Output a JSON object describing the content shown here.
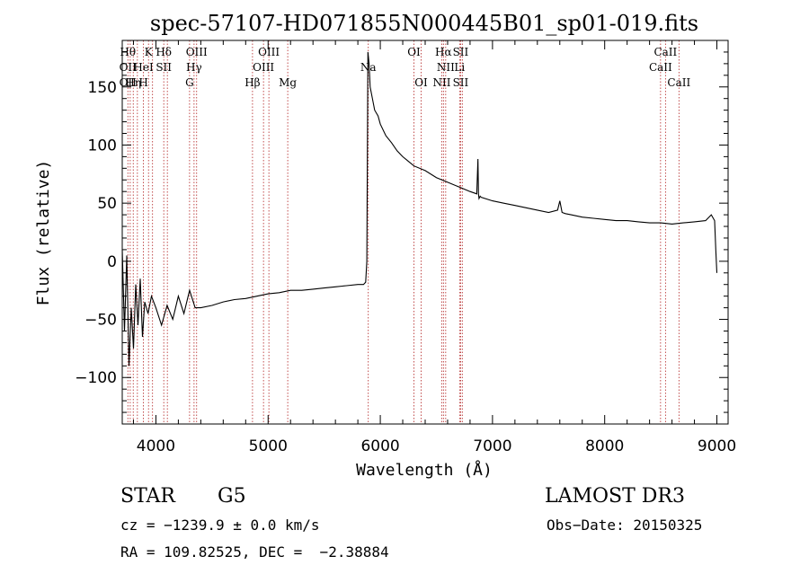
{
  "chart_data": {
    "type": "line",
    "title": "spec-57107-HD071855N000445B01_sp01-019.fits",
    "xlabel": "Wavelength (Å)",
    "ylabel": "Flux (relative)",
    "xlim": [
      3700,
      9100
    ],
    "ylim": [
      -140,
      190
    ],
    "xticks": [
      4000,
      5000,
      6000,
      7000,
      8000,
      9000
    ],
    "yticks": [
      -100,
      -50,
      0,
      50,
      100,
      150
    ],
    "series": [
      {
        "name": "flux",
        "x": [
          3700,
          3720,
          3740,
          3760,
          3780,
          3800,
          3820,
          3840,
          3860,
          3880,
          3900,
          3930,
          3960,
          4000,
          4050,
          4100,
          4150,
          4200,
          4250,
          4300,
          4350,
          4400,
          4500,
          4600,
          4700,
          4800,
          4900,
          5000,
          5100,
          5200,
          5300,
          5400,
          5500,
          5600,
          5700,
          5800,
          5850,
          5870,
          5880,
          5890,
          5900,
          5910,
          5930,
          5950,
          5980,
          6000,
          6050,
          6100,
          6150,
          6200,
          6250,
          6300,
          6400,
          6500,
          6600,
          6700,
          6800,
          6860,
          6870,
          6875,
          6880,
          6890,
          6900,
          7000,
          7100,
          7200,
          7300,
          7400,
          7500,
          7580,
          7600,
          7620,
          7650,
          7700,
          7800,
          7900,
          8000,
          8100,
          8200,
          8300,
          8400,
          8500,
          8600,
          8700,
          8800,
          8900,
          8950,
          8980,
          8990,
          9000
        ],
        "y": [
          10,
          -60,
          5,
          -90,
          -40,
          -75,
          -20,
          -55,
          -15,
          -65,
          -35,
          -45,
          -30,
          -40,
          -55,
          -38,
          -50,
          -30,
          -45,
          -25,
          -40,
          -40,
          -38,
          -35,
          -33,
          -32,
          -30,
          -28,
          -27,
          -25,
          -25,
          -24,
          -23,
          -22,
          -21,
          -20,
          -20,
          -18,
          0,
          180,
          170,
          150,
          140,
          130,
          125,
          118,
          108,
          102,
          95,
          90,
          86,
          82,
          78,
          72,
          68,
          64,
          60,
          58,
          88,
          58,
          54,
          56,
          55,
          52,
          50,
          48,
          46,
          44,
          42,
          44,
          52,
          42,
          41,
          40,
          38,
          37,
          36,
          35,
          35,
          34,
          33,
          33,
          32,
          33,
          34,
          35,
          40,
          35,
          10,
          -10
        ]
      }
    ],
    "lines": [
      {
        "wave": 3750,
        "labels": [
          "Hθ",
          "OII",
          "OII"
        ]
      },
      {
        "wave": 3771,
        "labels": []
      },
      {
        "wave": 3798,
        "labels": [
          "",
          "",
          "Hη"
        ]
      },
      {
        "wave": 3835,
        "labels": [
          "",
          "",
          ""
        ]
      },
      {
        "wave": 3889,
        "labels": [
          "",
          "HeI",
          "H"
        ]
      },
      {
        "wave": 3934,
        "labels": [
          "K",
          "",
          ""
        ]
      },
      {
        "wave": 3970,
        "labels": []
      },
      {
        "wave": 4070,
        "labels": [
          "Hδ",
          "SII",
          ""
        ]
      },
      {
        "wave": 4102,
        "labels": []
      },
      {
        "wave": 4300,
        "labels": [
          "",
          "",
          "G"
        ]
      },
      {
        "wave": 4340,
        "labels": [
          "",
          "Hγ",
          ""
        ]
      },
      {
        "wave": 4363,
        "labels": [
          "OIII",
          "",
          ""
        ]
      },
      {
        "wave": 4861,
        "labels": [
          "",
          "",
          "Hβ"
        ]
      },
      {
        "wave": 4959,
        "labels": [
          "",
          "OIII",
          ""
        ]
      },
      {
        "wave": 5007,
        "labels": [
          "OIII",
          "",
          ""
        ]
      },
      {
        "wave": 5175,
        "labels": [
          "",
          "",
          "Mg"
        ]
      },
      {
        "wave": 5893,
        "labels": [
          "",
          "Na",
          ""
        ]
      },
      {
        "wave": 6300,
        "labels": [
          "OI",
          "",
          ""
        ]
      },
      {
        "wave": 6364,
        "labels": [
          "",
          "",
          "OI"
        ]
      },
      {
        "wave": 6548,
        "labels": [
          "",
          "",
          "NII"
        ]
      },
      {
        "wave": 6563,
        "labels": [
          "Hα",
          "",
          ""
        ]
      },
      {
        "wave": 6583,
        "labels": [
          "",
          "NII",
          ""
        ]
      },
      {
        "wave": 6707,
        "labels": [
          "",
          "Li",
          ""
        ]
      },
      {
        "wave": 6716,
        "labels": [
          "SII",
          "",
          "SII"
        ]
      },
      {
        "wave": 6731,
        "labels": []
      },
      {
        "wave": 8498,
        "labels": [
          "",
          "CaII",
          ""
        ]
      },
      {
        "wave": 8542,
        "labels": [
          "CaII",
          "",
          ""
        ]
      },
      {
        "wave": 8662,
        "labels": [
          "",
          "",
          "CaII"
        ]
      }
    ]
  },
  "info": {
    "object_class": "STAR",
    "subclass": "G5",
    "survey": "LAMOST DR3",
    "cz": "cz = −1239.9 ± 0.0 km/s",
    "obs_date": "Obs−Date: 20150325",
    "coords": "RA = 109.82525, DEC =  −2.38884"
  },
  "colors": {
    "line": "#000000",
    "marker": "#b22222",
    "background": "#ffffff"
  }
}
